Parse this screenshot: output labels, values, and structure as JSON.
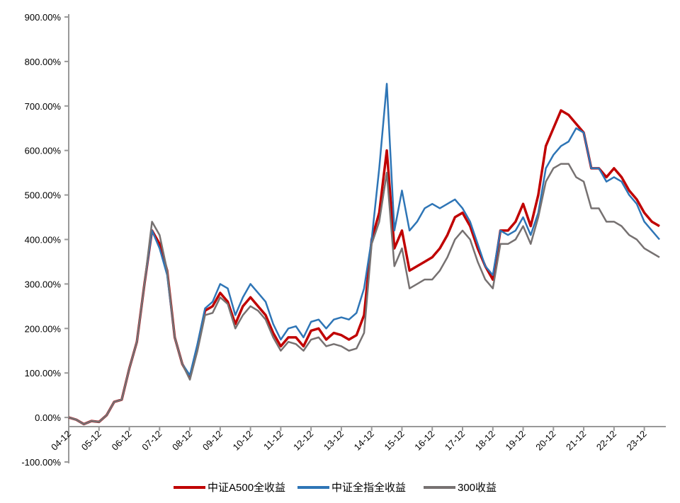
{
  "chart_data": {
    "type": "line",
    "categories": [
      "04-12",
      null,
      null,
      null,
      "05-12",
      null,
      null,
      null,
      "06-12",
      null,
      null,
      null,
      "07-12",
      null,
      null,
      null,
      "08-12",
      null,
      null,
      null,
      "09-12",
      null,
      null,
      null,
      "10-12",
      null,
      null,
      null,
      "11-12",
      null,
      null,
      null,
      "12-12",
      null,
      null,
      null,
      "13-12",
      null,
      null,
      null,
      "14-12",
      null,
      null,
      null,
      "15-12",
      null,
      null,
      null,
      "16-12",
      null,
      null,
      null,
      "17-12",
      null,
      null,
      null,
      "18-12",
      null,
      null,
      null,
      "19-12",
      null,
      null,
      null,
      "20-12",
      null,
      null,
      null,
      "21-12",
      null,
      null,
      null,
      "22-12",
      null,
      null,
      null,
      "23-12",
      null,
      null
    ],
    "series": [
      {
        "name": "中证A500全收益",
        "color": "#c00000",
        "values": [
          0,
          -5,
          -15,
          -8,
          -10,
          5,
          35,
          40,
          110,
          170,
          300,
          420,
          390,
          330,
          180,
          120,
          90,
          160,
          240,
          250,
          280,
          260,
          210,
          250,
          270,
          250,
          230,
          190,
          160,
          180,
          180,
          160,
          195,
          200,
          175,
          190,
          185,
          175,
          185,
          230,
          400,
          460,
          600,
          380,
          420,
          330,
          340,
          350,
          360,
          380,
          410,
          450,
          460,
          430,
          380,
          340,
          310,
          420,
          420,
          440,
          480,
          430,
          500,
          610,
          650,
          690,
          680,
          660,
          640,
          560,
          560,
          540,
          560,
          540,
          510,
          490,
          460,
          440,
          430
        ]
      },
      {
        "name": "中证全指全收益",
        "color": "#2e75b6",
        "values": [
          0,
          -5,
          -15,
          -8,
          -10,
          5,
          35,
          40,
          110,
          170,
          300,
          420,
          380,
          320,
          180,
          120,
          95,
          165,
          245,
          260,
          300,
          290,
          230,
          270,
          300,
          280,
          260,
          210,
          175,
          200,
          205,
          180,
          215,
          220,
          200,
          220,
          225,
          220,
          235,
          290,
          400,
          560,
          750,
          420,
          510,
          420,
          440,
          470,
          480,
          470,
          480,
          490,
          470,
          440,
          390,
          340,
          320,
          420,
          410,
          420,
          450,
          410,
          460,
          560,
          590,
          610,
          620,
          650,
          640,
          560,
          560,
          530,
          540,
          530,
          500,
          480,
          440,
          420,
          400
        ]
      },
      {
        "name": "300收益",
        "color": "#767171",
        "values": [
          0,
          -5,
          -15,
          -8,
          -10,
          5,
          35,
          40,
          110,
          170,
          300,
          440,
          410,
          330,
          180,
          120,
          85,
          150,
          230,
          235,
          270,
          255,
          200,
          230,
          250,
          240,
          220,
          180,
          150,
          170,
          165,
          150,
          175,
          180,
          160,
          165,
          160,
          150,
          155,
          190,
          390,
          440,
          550,
          340,
          380,
          290,
          300,
          310,
          310,
          330,
          360,
          400,
          420,
          400,
          350,
          310,
          290,
          390,
          390,
          400,
          430,
          390,
          450,
          530,
          560,
          570,
          570,
          540,
          530,
          470,
          470,
          440,
          440,
          430,
          410,
          400,
          380,
          370,
          360
        ]
      }
    ],
    "ylim": [
      -100,
      900
    ],
    "yticks": [
      {
        "value": -100,
        "label": "-100.00%"
      },
      {
        "value": 0,
        "label": "0.00%"
      },
      {
        "value": 100,
        "label": "100.00%"
      },
      {
        "value": 200,
        "label": "200.00%"
      },
      {
        "value": 300,
        "label": "300.00%"
      },
      {
        "value": 400,
        "label": "400.00%"
      },
      {
        "value": 500,
        "label": "500.00%"
      },
      {
        "value": 600,
        "label": "600.00%"
      },
      {
        "value": 700,
        "label": "700.00%"
      },
      {
        "value": 800,
        "label": "800.00%"
      },
      {
        "value": 900,
        "label": "900.00%"
      }
    ],
    "legend": "bottom"
  }
}
